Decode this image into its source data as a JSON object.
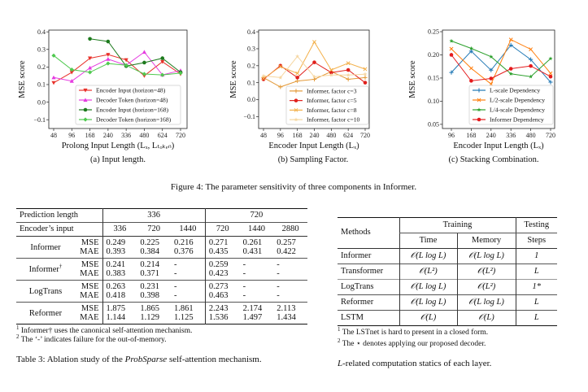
{
  "chart_data": [
    {
      "type": "line",
      "x_ticks": [
        "48",
        "96",
        "168",
        "240",
        "336",
        "480",
        "624",
        "720"
      ],
      "y_ticks": [
        "0.4",
        "0.3",
        "0.2",
        "0.1",
        "0.0",
        "−0.1"
      ],
      "y_tick_values": [
        0.4,
        0.3,
        0.2,
        0.1,
        0.0,
        -0.1
      ],
      "ylim": [
        -0.15,
        0.41
      ],
      "xlabel": "Prolong Input Length (Lₓ, Lₜₒₖₑₙ)",
      "ylabel": "MSE score",
      "legend_position": "lower-right",
      "series": [
        {
          "name": "Encoder Input (horizon=48)",
          "color": "#e8312a",
          "marker": "triangle-down",
          "values": [
            0.11,
            0.17,
            0.25,
            0.27,
            0.24,
            0.15,
            0.23,
            0.16
          ]
        },
        {
          "name": "Decoder Token (horizon=48)",
          "color": "#e53be0",
          "marker": "triangle-up",
          "values": [
            0.14,
            0.12,
            0.195,
            0.245,
            0.21,
            0.285,
            0.155,
            0.18
          ]
        },
        {
          "name": "Encoder Input (horizon=168)",
          "color": "#1d7a1d",
          "marker": "circle",
          "values": [
            null,
            null,
            0.36,
            0.345,
            0.205,
            0.225,
            0.25,
            0.17
          ]
        },
        {
          "name": "Decoder Token (horizon=168)",
          "color": "#4fc94f",
          "marker": "diamond",
          "values": [
            0.265,
            0.185,
            0.17,
            0.22,
            0.21,
            0.16,
            0.155,
            0.165
          ]
        }
      ]
    },
    {
      "type": "line",
      "x_ticks": [
        "48",
        "96",
        "168",
        "240",
        "480",
        "624",
        "720"
      ],
      "y_ticks": [
        "0.4",
        "0.3",
        "0.2",
        "0.1",
        "0.0",
        "−0.1"
      ],
      "y_tick_values": [
        0.4,
        0.3,
        0.2,
        0.1,
        0.0,
        -0.1
      ],
      "ylim": [
        -0.17,
        0.41
      ],
      "xlabel": "Encoder Input Length (Lₓ)",
      "ylabel": "MSE score",
      "legend_position": "lower-right",
      "series": [
        {
          "name": "Informer, factor c=3",
          "color": "#e39a3a",
          "marker": "plus",
          "values": [
            0.13,
            0.075,
            0.11,
            0.12,
            0.165,
            0.12,
            0.13
          ]
        },
        {
          "name": "Informer, factor c=5",
          "color": "#e0201c",
          "marker": "circle",
          "values": [
            0.12,
            0.2,
            0.13,
            0.22,
            0.16,
            0.175,
            0.1
          ]
        },
        {
          "name": "Informer, factor c=8",
          "color": "#f3b04a",
          "marker": "x",
          "values": [
            0.125,
            0.195,
            0.155,
            0.34,
            0.175,
            0.215,
            0.18
          ]
        },
        {
          "name": "Informer, factor c=10",
          "color": "#f6d6a0",
          "marker": "star",
          "values": [
            0.14,
            0.13,
            0.255,
            0.135,
            0.145,
            0.145,
            0.15
          ]
        }
      ]
    },
    {
      "type": "line",
      "x_ticks": [
        "96",
        "168",
        "240",
        "336",
        "480",
        "720"
      ],
      "y_ticks": [
        "0.25",
        "0.20",
        "0.15",
        "0.10",
        "0.05"
      ],
      "y_tick_values": [
        0.25,
        0.2,
        0.15,
        0.1,
        0.05
      ],
      "ylim": [
        0.041,
        0.2535
      ],
      "xlabel": "Encoder Input Length (Lₓ)",
      "ylabel": "MSE score",
      "legend_position": "lower-right",
      "series": [
        {
          "name": "L-scale Dependency",
          "color": "#1f77b4",
          "marker": "plus",
          "values": [
            0.162,
            0.208,
            0.167,
            0.221,
            0.19,
            0.141
          ]
        },
        {
          "name": "L/2-scale Dependency",
          "color": "#ff7f0e",
          "marker": "x",
          "values": [
            0.213,
            0.171,
            0.137,
            0.233,
            0.212,
            0.16
          ]
        },
        {
          "name": "L/4-scale Dependency",
          "color": "#2ca02c",
          "marker": "star",
          "values": [
            0.23,
            0.214,
            0.196,
            0.159,
            0.153,
            0.192
          ]
        },
        {
          "name": "Informer Dependency",
          "color": "#e41a1c",
          "marker": "circle",
          "values": [
            0.2,
            0.144,
            0.149,
            0.17,
            0.176,
            0.153
          ]
        }
      ]
    }
  ],
  "figure": {
    "subcaptions": [
      "(a) Input length.",
      "(b) Sampling Factor.",
      "(c) Stacking Combination."
    ],
    "caption": "Figure 4: The parameter sensitivity of three components in Informer."
  },
  "table3": {
    "header1": {
      "label": "Prediction length",
      "groups": [
        "336",
        "720"
      ]
    },
    "header2": {
      "label": "Encoder’s input",
      "cols": [
        "336",
        "720",
        "1440",
        "720",
        "1440",
        "2880"
      ]
    },
    "rows": [
      {
        "method": "Informer",
        "sup": "",
        "mse": [
          "0.249",
          "0.225",
          "0.216",
          "0.271",
          "0.261",
          "0.257"
        ],
        "mae": [
          "0.393",
          "0.384",
          "0.376",
          "0.435",
          "0.431",
          "0.422"
        ]
      },
      {
        "method": "Informer",
        "sup": "†",
        "mse": [
          "0.241",
          "0.214",
          "-",
          "0.259",
          "-",
          "-"
        ],
        "mae": [
          "0.383",
          "0.371",
          "-",
          "0.423",
          "-",
          "-"
        ]
      },
      {
        "method": "LogTrans",
        "sup": "",
        "mse": [
          "0.263",
          "0.231",
          "-",
          "0.273",
          "-",
          "-"
        ],
        "mae": [
          "0.418",
          "0.398",
          "-",
          "0.463",
          "-",
          "-"
        ]
      },
      {
        "method": "Reformer",
        "sup": "",
        "mse": [
          "1.875",
          "1.865",
          "1.861",
          "2.243",
          "2.174",
          "2.113"
        ],
        "mae": [
          "1.144",
          "1.129",
          "1.125",
          "1.536",
          "1.497",
          "1.434"
        ]
      }
    ],
    "metric_labels": [
      "MSE",
      "MAE"
    ],
    "footnotes": [
      "Informer† uses the canonical self-attention mechanism.",
      "The ‘-’ indicates failure for the out-of-memory."
    ],
    "footnote_marks": [
      "1",
      "2"
    ],
    "caption_pre": "Table 3: Ablation study of the ",
    "caption_em": "ProbSparse",
    "caption_post": " self-attention mechanism."
  },
  "table4": {
    "header": {
      "methods": "Methods",
      "training": "Training",
      "testing": "Testing",
      "time": "Time",
      "memory": "Memory",
      "steps": "Steps"
    },
    "rows": [
      {
        "method": "Informer",
        "time": "𝒪(L log L)",
        "memory": "𝒪(L log L)",
        "steps": "1"
      },
      {
        "method": "Transformer",
        "time": "𝒪(L²)",
        "memory": "𝒪(L²)",
        "steps": "L"
      },
      {
        "method": "LogTrans",
        "time": "𝒪(L log L)",
        "memory": "𝒪(L²)",
        "steps": "1*"
      },
      {
        "method": "Reformer",
        "time": "𝒪(L log L)",
        "memory": "𝒪(L log L)",
        "steps": "L"
      },
      {
        "method": "LSTM",
        "time": "𝒪(L)",
        "memory": "𝒪(L)",
        "steps": "L"
      }
    ],
    "footnotes": [
      "The LSTnet is hard to present in a closed form.",
      "The ⋆ denotes applying our proposed decoder."
    ],
    "footnote_marks": [
      "1",
      "2"
    ],
    "caption_em": "L",
    "caption_post": "-related computation statics of each layer."
  }
}
